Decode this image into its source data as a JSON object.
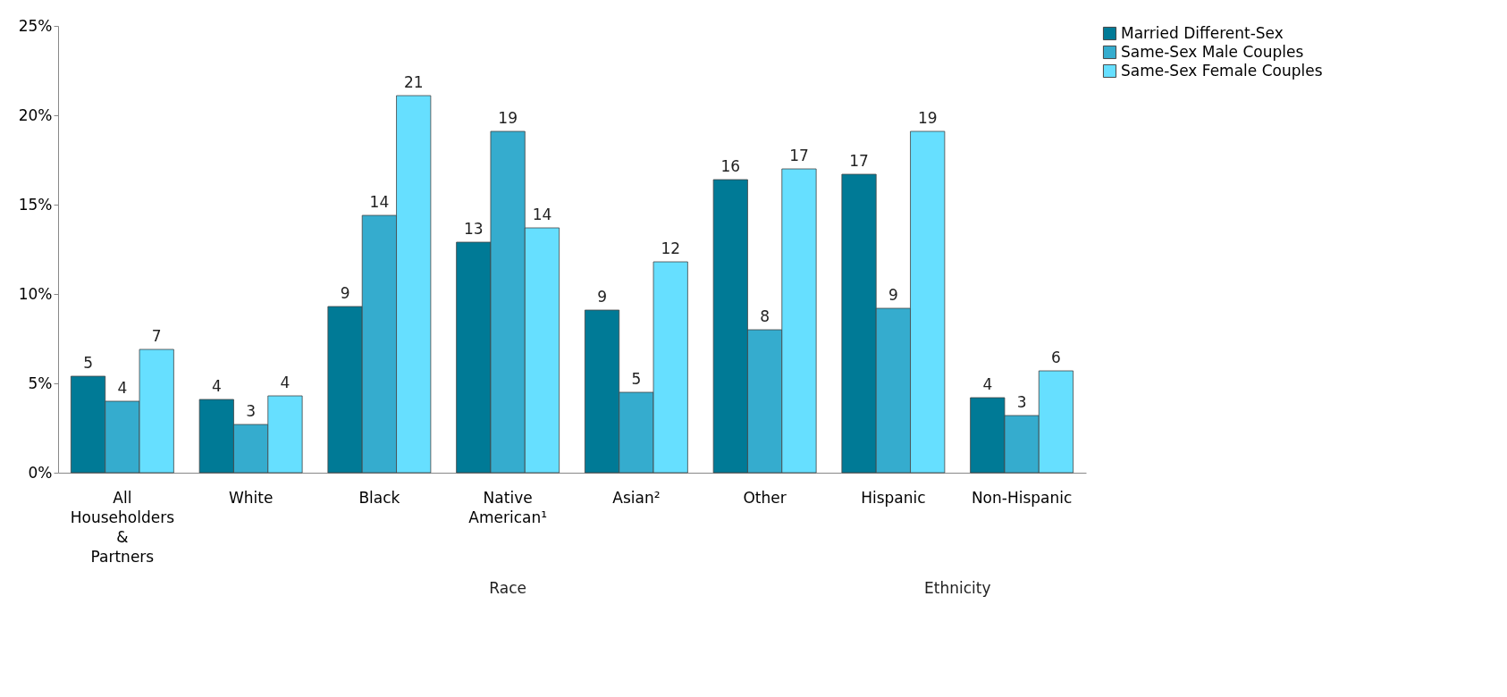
{
  "chart_data": {
    "type": "bar",
    "categories": [
      "All Householders & Partners",
      "White",
      "Black",
      "Native American¹",
      "Asian²",
      "Other",
      "Hispanic",
      "Non-Hispanic"
    ],
    "series": [
      {
        "name": "Married Different-Sex",
        "color": "#007a96",
        "values": [
          5.4,
          4.1,
          9.3,
          12.9,
          9.1,
          16.4,
          16.7,
          4.2
        ],
        "value_labels": [
          "5",
          "4",
          "9",
          "13",
          "9",
          "16",
          "17",
          "4"
        ]
      },
      {
        "name": "Same-Sex Male Couples",
        "color": "#35acce",
        "values": [
          4.0,
          2.7,
          14.4,
          19.1,
          4.5,
          8.0,
          9.2,
          3.2
        ],
        "value_labels": [
          "4",
          "3",
          "14",
          "19",
          "5",
          "8",
          "9",
          "3"
        ]
      },
      {
        "name": "Same-Sex Female Couples",
        "color": "#66dfff",
        "values": [
          6.9,
          4.3,
          21.1,
          13.7,
          11.8,
          17.0,
          19.1,
          5.7
        ],
        "value_labels": [
          "7",
          "4",
          "21",
          "14",
          "12",
          "17",
          "19",
          "6"
        ]
      }
    ],
    "ylim": [
      0,
      25
    ],
    "yticks": [
      {
        "value": 0,
        "label": "0%"
      },
      {
        "value": 5,
        "label": "5%"
      },
      {
        "value": 10,
        "label": "10%"
      },
      {
        "value": 15,
        "label": "15%"
      },
      {
        "value": 20,
        "label": "20%"
      },
      {
        "value": 25,
        "label": "25%"
      }
    ],
    "annotations": [
      "Race",
      "Ethnicity"
    ],
    "grid": false,
    "legend": "right"
  }
}
